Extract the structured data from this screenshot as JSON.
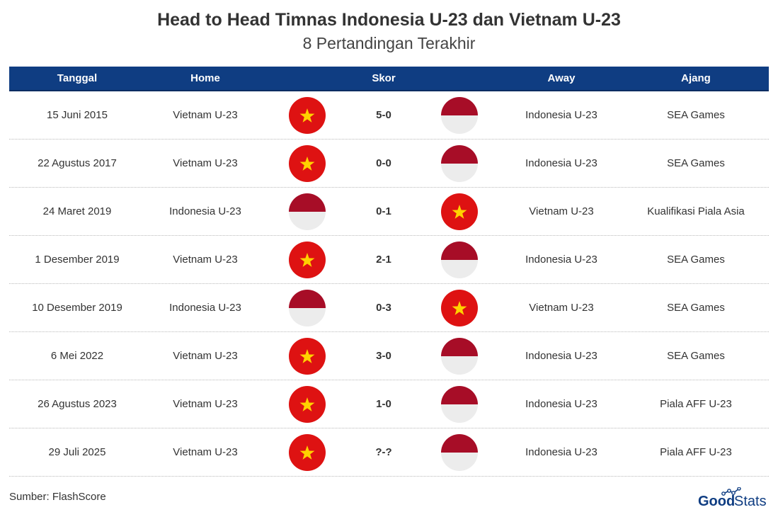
{
  "title": "Head to Head Timnas Indonesia U-23 dan Vietnam U-23",
  "subtitle": "8 Pertandingan Terakhir",
  "source": "Sumber: FlashScore",
  "logo_text": "GoodStats",
  "colors": {
    "header_bg": "#0f3d82",
    "indonesia_red": "#a70d27",
    "indonesia_white": "#ececec",
    "vietnam_red": "#de1212",
    "vietnam_star": "#ffd200",
    "logo_blue": "#0f3d82"
  },
  "chart_data": {
    "type": "table",
    "columns": [
      "Tanggal",
      "Home",
      "Skor",
      "Away",
      "Ajang"
    ],
    "rows": [
      {
        "date": "15 Juni 2015",
        "home": "Vietnam U-23",
        "home_flag": "vietnam-flag-icon",
        "score": "5-0",
        "away": "Indonesia U-23",
        "away_flag": "indonesia-flag-icon",
        "competition": "SEA Games"
      },
      {
        "date": "22 Agustus 2017",
        "home": "Vietnam U-23",
        "home_flag": "vietnam-flag-icon",
        "score": "0-0",
        "away": "Indonesia U-23",
        "away_flag": "indonesia-flag-icon",
        "competition": "SEA Games"
      },
      {
        "date": "24 Maret 2019",
        "home": "Indonesia U-23",
        "home_flag": "indonesia-flag-icon",
        "score": "0-1",
        "away": "Vietnam U-23",
        "away_flag": "vietnam-flag-icon",
        "competition": "Kualifikasi Piala Asia"
      },
      {
        "date": "1 Desember 2019",
        "home": "Vietnam U-23",
        "home_flag": "vietnam-flag-icon",
        "score": "2-1",
        "away": "Indonesia U-23",
        "away_flag": "indonesia-flag-icon",
        "competition": "SEA Games"
      },
      {
        "date": "10 Desember 2019",
        "home": "Indonesia U-23",
        "home_flag": "indonesia-flag-icon",
        "score": "0-3",
        "away": "Vietnam U-23",
        "away_flag": "vietnam-flag-icon",
        "competition": "SEA Games"
      },
      {
        "date": "6 Mei 2022",
        "home": "Vietnam U-23",
        "home_flag": "vietnam-flag-icon",
        "score": "3-0",
        "away": "Indonesia U-23",
        "away_flag": "indonesia-flag-icon",
        "competition": "SEA Games"
      },
      {
        "date": "26 Agustus 2023",
        "home": "Vietnam U-23",
        "home_flag": "vietnam-flag-icon",
        "score": "1-0",
        "away": "Indonesia U-23",
        "away_flag": "indonesia-flag-icon",
        "competition": "Piala AFF U-23"
      },
      {
        "date": "29 Juli 2025",
        "home": "Vietnam U-23",
        "home_flag": "vietnam-flag-icon",
        "score": "?-?",
        "away": "Indonesia U-23",
        "away_flag": "indonesia-flag-icon",
        "competition": "Piala AFF U-23"
      }
    ]
  }
}
